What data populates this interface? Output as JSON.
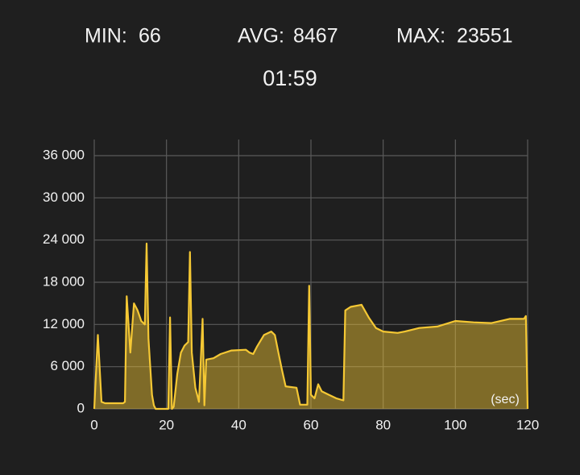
{
  "stats": [
    {
      "label": "MIN:",
      "value": 66
    },
    {
      "label": "AVG:",
      "value": 8467
    },
    {
      "label": "MAX:",
      "value": 23551
    }
  ],
  "timer": "01:59",
  "chart_data": {
    "type": "area",
    "x": [
      0,
      1,
      2,
      3,
      5,
      8,
      8.5,
      9,
      10,
      11,
      12,
      13,
      14,
      14.5,
      15,
      16,
      16.5,
      17,
      20,
      20.5,
      21,
      21.5,
      22,
      23,
      24,
      25,
      26,
      26.5,
      27,
      28,
      29,
      30,
      30.5,
      31,
      33,
      35,
      38,
      42,
      43,
      44,
      45,
      47,
      49,
      50,
      51,
      52,
      53,
      56,
      57,
      59,
      59.5,
      60,
      61,
      62,
      63,
      65,
      67,
      69,
      69.5,
      71,
      74,
      76,
      78,
      80,
      84,
      86,
      90,
      95,
      100,
      105,
      110,
      115,
      119,
      119.5,
      120
    ],
    "series": [
      {
        "color": "#f5c834",
        "values": [
          0,
          10500,
          1000,
          800,
          800,
          800,
          1000,
          16000,
          8000,
          15000,
          14000,
          12500,
          12000,
          23500,
          10000,
          2000,
          500,
          0,
          0,
          0,
          13000,
          0,
          300,
          5000,
          8000,
          9000,
          9500,
          22300,
          8000,
          3000,
          1000,
          12800,
          500,
          7000,
          7200,
          7800,
          8300,
          8400,
          8000,
          7800,
          8800,
          10500,
          11000,
          10500,
          8000,
          5500,
          3200,
          3000,
          600,
          600,
          17500,
          2000,
          1500,
          3500,
          2500,
          2000,
          1500,
          1200,
          14000,
          14500,
          14800,
          13000,
          11500,
          11000,
          10800,
          11000,
          11500,
          11700,
          12500,
          12300,
          12200,
          12800,
          12800,
          13200,
          0
        ]
      }
    ],
    "xlim": [
      0,
      120
    ],
    "xticks": [
      0,
      20,
      40,
      60,
      80,
      100,
      120
    ],
    "ylim": [
      0,
      36000
    ],
    "yticks": [
      {
        "value": 0,
        "label": "0"
      },
      {
        "value": 6000,
        "label": "6 000"
      },
      {
        "value": 12000,
        "label": "12 000"
      },
      {
        "value": 18000,
        "label": "18 000"
      },
      {
        "value": 24000,
        "label": "24 000"
      },
      {
        "value": 30000,
        "label": "30 000"
      },
      {
        "value": 36000,
        "label": "36 000"
      }
    ],
    "annotation": "(sec)",
    "grid": true
  }
}
